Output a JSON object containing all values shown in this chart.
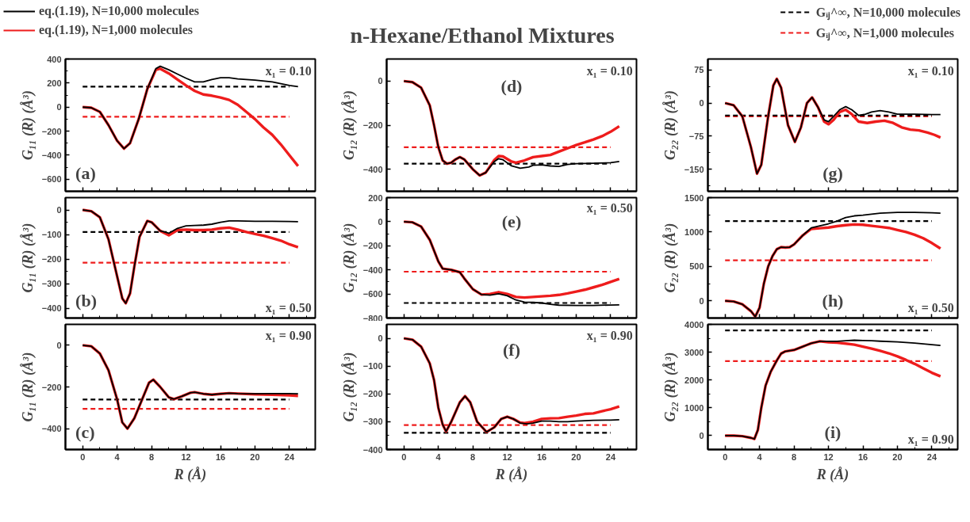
{
  "chart_data": [
    {
      "type": "line",
      "xlim": [
        -2,
        27
      ],
      "xticks": [
        0,
        4,
        8,
        12,
        16,
        20,
        24
      ],
      "ylim": [
        -700,
        400
      ],
      "yticks": [
        -600,
        -400,
        -200,
        0,
        200,
        400
      ],
      "ylabel": "G₁₁ (R) (Å³)",
      "tick_labels": "y",
      "legend": "top left",
      "annotations": [
        "(a)",
        "x₁ = 0.10"
      ],
      "series": [
        {
          "name": "eq.(1.19), N=10,000 molecules",
          "color": "#000000",
          "line_style": "solid",
          "x": [
            0,
            1,
            2,
            3,
            4,
            4.8,
            5.5,
            6.5,
            7.5,
            8.5,
            9,
            10,
            11,
            12,
            13,
            14,
            15,
            16,
            17,
            18,
            20,
            22,
            24,
            25
          ],
          "values": [
            0,
            -5,
            -40,
            -150,
            -280,
            -345,
            -300,
            -100,
            150,
            320,
            340,
            310,
            275,
            240,
            210,
            210,
            230,
            245,
            245,
            235,
            225,
            210,
            180,
            170
          ]
        },
        {
          "name": "eq.(1.19), N=1,000 molecules",
          "color": "#ee1c1c",
          "line_style": "solid",
          "x": [
            0,
            1,
            2,
            3,
            4,
            4.8,
            5.5,
            6.5,
            7.5,
            8.5,
            9,
            10,
            11,
            12,
            13,
            14,
            15,
            16,
            17,
            18,
            19,
            20,
            21,
            22,
            23,
            24,
            25
          ],
          "values": [
            0,
            -5,
            -40,
            -150,
            -280,
            -345,
            -300,
            -100,
            150,
            310,
            320,
            280,
            230,
            180,
            135,
            105,
            95,
            80,
            60,
            20,
            -40,
            -100,
            -170,
            -230,
            -310,
            -400,
            -490
          ]
        },
        {
          "color": "#000000",
          "line_style": "dashed",
          "x": [
            0,
            24
          ],
          "values": [
            170,
            170
          ]
        },
        {
          "color": "#ee1c1c",
          "line_style": "dashed",
          "x": [
            0,
            24
          ],
          "values": [
            -80,
            -80
          ]
        }
      ]
    },
    {
      "type": "line",
      "xlim": [
        -2,
        27
      ],
      "xticks": [
        0,
        4,
        8,
        12,
        16,
        20,
        24
      ],
      "ylim": [
        -440,
        50
      ],
      "yticks": [
        -400,
        -300,
        -200,
        -100,
        0
      ],
      "ylabel": "G₁₁ (R) (Å³)",
      "tick_labels": "y",
      "annotations": [
        "(b)",
        "x₁ = 0.50"
      ],
      "series": [
        {
          "color": "#000000",
          "line_style": "solid",
          "x": [
            0,
            1,
            2,
            3,
            4,
            4.6,
            5,
            5.5,
            6,
            6.6,
            7.5,
            8,
            9,
            10,
            11,
            12,
            13,
            14,
            15,
            16,
            17,
            18,
            20,
            22,
            24,
            25
          ],
          "values": [
            0,
            -5,
            -30,
            -120,
            -270,
            -360,
            -380,
            -340,
            -230,
            -110,
            -45,
            -50,
            -85,
            -95,
            -75,
            -65,
            -63,
            -62,
            -58,
            -50,
            -45,
            -45,
            -46,
            -46,
            -47,
            -48
          ]
        },
        {
          "color": "#ee1c1c",
          "line_style": "solid",
          "x": [
            0,
            1,
            2,
            3,
            4,
            4.6,
            5,
            5.5,
            6,
            6.6,
            7.5,
            8,
            9,
            10,
            11,
            12,
            13,
            14,
            15,
            16,
            17,
            18,
            19,
            20,
            21,
            22,
            23,
            24,
            25
          ],
          "values": [
            0,
            -5,
            -30,
            -120,
            -270,
            -360,
            -380,
            -340,
            -230,
            -110,
            -45,
            -50,
            -85,
            -103,
            -82,
            -80,
            -82,
            -82,
            -80,
            -75,
            -72,
            -80,
            -90,
            -98,
            -105,
            -115,
            -125,
            -140,
            -152
          ]
        },
        {
          "color": "#000000",
          "line_style": "dashed",
          "x": [
            0,
            24
          ],
          "values": [
            -90,
            -90
          ]
        },
        {
          "color": "#ee1c1c",
          "line_style": "dashed",
          "x": [
            0,
            24
          ],
          "values": [
            -215,
            -215
          ]
        }
      ]
    },
    {
      "type": "line",
      "xlim": [
        -2,
        27
      ],
      "xticks": [
        0,
        4,
        8,
        12,
        16,
        20,
        24
      ],
      "ylim": [
        -500,
        100
      ],
      "yticks": [
        -400,
        -200,
        0
      ],
      "ylabel": "G₁₁ (R) (Å³)",
      "xlabel": "R (Å)",
      "annotations": [
        "(c)",
        "x₁ = 0.90"
      ],
      "series": [
        {
          "color": "#000000",
          "line_style": "solid",
          "x": [
            0,
            1,
            2,
            3,
            4,
            4.6,
            5.2,
            6,
            7,
            7.7,
            8.2,
            9,
            10,
            10.6,
            11.5,
            12.5,
            13,
            14,
            15,
            16,
            17,
            18,
            20,
            22,
            24,
            25
          ],
          "values": [
            0,
            -5,
            -40,
            -120,
            -260,
            -370,
            -400,
            -350,
            -250,
            -180,
            -165,
            -200,
            -250,
            -258,
            -245,
            -228,
            -225,
            -233,
            -237,
            -233,
            -230,
            -232,
            -233,
            -232,
            -232,
            -233
          ]
        },
        {
          "color": "#ee1c1c",
          "line_style": "solid",
          "x": [
            0,
            1,
            2,
            3,
            4,
            4.6,
            5.2,
            6,
            7,
            7.7,
            8.2,
            9,
            10,
            10.6,
            11.5,
            12.5,
            13,
            14,
            15,
            16,
            17,
            18,
            20,
            22,
            24,
            25
          ],
          "values": [
            0,
            -5,
            -40,
            -120,
            -260,
            -370,
            -400,
            -350,
            -250,
            -180,
            -165,
            -200,
            -250,
            -258,
            -245,
            -228,
            -225,
            -233,
            -237,
            -233,
            -230,
            -232,
            -235,
            -237,
            -240,
            -243
          ]
        },
        {
          "color": "#000000",
          "line_style": "dashed",
          "x": [
            0,
            24
          ],
          "values": [
            -260,
            -260
          ]
        },
        {
          "color": "#ee1c1c",
          "line_style": "dashed",
          "x": [
            0,
            24
          ],
          "values": [
            -305,
            -305
          ]
        }
      ]
    },
    {
      "type": "line",
      "title": "n-Hexane/Ethanol Mixtures",
      "xlim": [
        -2,
        27
      ],
      "xticks": [
        0,
        4,
        8,
        12,
        16,
        20,
        24
      ],
      "ylim": [
        -500,
        100
      ],
      "yticks": [
        -400,
        -200,
        0
      ],
      "ylabel": "G₁₂ (R) (Å³)",
      "tick_labels": "y",
      "annotations": [
        "(d)",
        "x₁ = 0.10"
      ],
      "series": [
        {
          "color": "#000000",
          "line_style": "solid",
          "x": [
            0,
            1,
            2,
            3,
            3.5,
            4,
            4.5,
            5,
            5.5,
            6,
            6.5,
            7,
            8,
            8.8,
            9.5,
            10.5,
            11,
            11.5,
            12.5,
            13.5,
            14.5,
            15,
            16,
            17,
            18,
            19,
            20,
            22,
            24,
            25
          ],
          "values": [
            0,
            -5,
            -30,
            -110,
            -200,
            -300,
            -360,
            -375,
            -370,
            -355,
            -345,
            -355,
            -400,
            -428,
            -415,
            -365,
            -352,
            -357,
            -385,
            -395,
            -390,
            -382,
            -380,
            -385,
            -387,
            -378,
            -375,
            -373,
            -370,
            -365
          ]
        },
        {
          "color": "#ee1c1c",
          "line_style": "solid",
          "x": [
            0,
            1,
            2,
            3,
            3.5,
            4,
            4.5,
            5,
            5.5,
            6,
            6.5,
            7,
            8,
            8.8,
            9.5,
            10.5,
            11,
            11.5,
            12.5,
            13,
            14,
            15,
            16,
            17,
            18,
            19,
            20,
            21,
            22,
            23,
            24,
            25
          ],
          "values": [
            0,
            -5,
            -30,
            -110,
            -200,
            -300,
            -360,
            -375,
            -370,
            -355,
            -345,
            -355,
            -400,
            -428,
            -415,
            -358,
            -340,
            -342,
            -365,
            -370,
            -360,
            -345,
            -340,
            -335,
            -320,
            -305,
            -290,
            -278,
            -265,
            -250,
            -230,
            -205
          ]
        },
        {
          "color": "#000000",
          "line_style": "dashed",
          "x": [
            0,
            24
          ],
          "values": [
            -375,
            -375
          ]
        },
        {
          "color": "#ee1c1c",
          "line_style": "dashed",
          "x": [
            0,
            24
          ],
          "values": [
            -300,
            -300
          ]
        }
      ]
    },
    {
      "type": "line",
      "xlim": [
        -2,
        27
      ],
      "xticks": [
        0,
        4,
        8,
        12,
        16,
        20,
        24
      ],
      "ylim": [
        -800,
        200
      ],
      "yticks": [
        -800,
        -600,
        -400,
        -200,
        0,
        200
      ],
      "ylabel": "G₁₂ (R) (Å³)",
      "tick_labels": "y",
      "annotations": [
        "(e)",
        "x₁ = 0.50"
      ],
      "series": [
        {
          "color": "#000000",
          "line_style": "solid",
          "x": [
            0,
            1,
            2,
            3,
            4,
            4.5,
            5.5,
            6.5,
            7,
            8,
            9,
            10,
            11,
            12,
            13,
            14,
            15,
            16,
            17,
            18,
            20,
            22,
            24,
            25
          ],
          "values": [
            0,
            -5,
            -40,
            -150,
            -330,
            -390,
            -400,
            -420,
            -470,
            -560,
            -605,
            -610,
            -598,
            -615,
            -650,
            -668,
            -670,
            -675,
            -685,
            -693,
            -695,
            -695,
            -692,
            -690
          ]
        },
        {
          "color": "#ee1c1c",
          "line_style": "solid",
          "x": [
            0,
            1,
            2,
            3,
            4,
            4.5,
            5.5,
            6.5,
            7,
            8,
            9,
            10,
            11,
            12,
            13,
            14,
            15,
            16,
            17,
            18,
            19,
            20,
            21,
            22,
            23,
            24,
            25
          ],
          "values": [
            0,
            -5,
            -40,
            -150,
            -330,
            -390,
            -400,
            -420,
            -470,
            -560,
            -605,
            -600,
            -585,
            -600,
            -625,
            -630,
            -625,
            -620,
            -615,
            -608,
            -595,
            -580,
            -565,
            -545,
            -525,
            -500,
            -475
          ]
        },
        {
          "color": "#000000",
          "line_style": "dashed",
          "x": [
            0,
            24
          ],
          "values": [
            -675,
            -675
          ]
        },
        {
          "color": "#ee1c1c",
          "line_style": "dashed",
          "x": [
            0,
            24
          ],
          "values": [
            -415,
            -415
          ]
        }
      ]
    },
    {
      "type": "line",
      "xlim": [
        -2,
        27
      ],
      "xticks": [
        0,
        4,
        8,
        12,
        16,
        20,
        24
      ],
      "ylim": [
        -400,
        50
      ],
      "yticks": [
        -400,
        -300,
        -200,
        -100,
        0
      ],
      "ylabel": "G₁₂ (R) (Å³)",
      "xlabel": "R (Å)",
      "annotations": [
        "(f)",
        "x₁ = 0.90"
      ],
      "series": [
        {
          "color": "#000000",
          "line_style": "solid",
          "x": [
            0,
            1,
            2,
            3,
            3.5,
            4,
            4.5,
            4.9,
            5.5,
            6.5,
            7.1,
            7.7,
            8.5,
            9.6,
            10.5,
            11.3,
            12,
            12.7,
            13.5,
            14.3,
            15,
            16,
            17,
            18,
            19,
            20,
            22,
            24,
            25
          ],
          "values": [
            0,
            -5,
            -30,
            -90,
            -150,
            -250,
            -310,
            -335,
            -300,
            -230,
            -208,
            -230,
            -300,
            -337,
            -320,
            -290,
            -282,
            -290,
            -305,
            -308,
            -305,
            -298,
            -298,
            -300,
            -300,
            -298,
            -295,
            -294,
            -293
          ]
        },
        {
          "color": "#ee1c1c",
          "line_style": "solid",
          "x": [
            0,
            1,
            2,
            3,
            3.5,
            4,
            4.5,
            4.9,
            5.5,
            6.5,
            7.1,
            7.7,
            8.5,
            9.6,
            10.5,
            11.3,
            12,
            12.7,
            13.5,
            14,
            15,
            16,
            17,
            18,
            19,
            20,
            21,
            22,
            23,
            24,
            25
          ],
          "values": [
            0,
            -5,
            -30,
            -90,
            -150,
            -250,
            -310,
            -335,
            -300,
            -230,
            -208,
            -230,
            -300,
            -337,
            -320,
            -290,
            -282,
            -290,
            -303,
            -305,
            -300,
            -290,
            -288,
            -287,
            -282,
            -278,
            -272,
            -270,
            -262,
            -255,
            -245
          ]
        },
        {
          "color": "#000000",
          "line_style": "dashed",
          "x": [
            0,
            24
          ],
          "values": [
            -340,
            -340
          ]
        },
        {
          "color": "#ee1c1c",
          "line_style": "dashed",
          "x": [
            0,
            24
          ],
          "values": [
            -312,
            -312
          ]
        }
      ]
    },
    {
      "type": "line",
      "xlim": [
        -2,
        27
      ],
      "xticks": [
        0,
        4,
        8,
        12,
        16,
        20,
        24
      ],
      "ylim": [
        -200,
        100
      ],
      "yticks": [
        -150,
        -75,
        0,
        75
      ],
      "ylabel": "G₂₂ (R) (Å³)",
      "tick_labels": "y",
      "legend": "top right",
      "annotations": [
        "(g)",
        "x₁ = 0.10"
      ],
      "series": [
        {
          "color": "#000000",
          "line_style": "solid",
          "x": [
            0,
            1,
            2,
            3,
            3.7,
            4.2,
            5,
            5.6,
            6,
            6.5,
            7.3,
            8.1,
            8.8,
            9.5,
            10.1,
            10.8,
            11.5,
            12,
            12.6,
            13.3,
            14,
            14.7,
            15.5,
            16.3,
            17,
            18,
            19,
            20,
            22,
            24,
            25
          ],
          "values": [
            0,
            -5,
            -30,
            -100,
            -160,
            -140,
            -30,
            40,
            55,
            35,
            -50,
            -88,
            -55,
            0,
            13,
            -10,
            -38,
            -42,
            -30,
            -15,
            -8,
            -15,
            -28,
            -25,
            -20,
            -17,
            -20,
            -25,
            -25,
            -26,
            -26
          ]
        },
        {
          "color": "#ee1c1c",
          "line_style": "solid",
          "x": [
            0,
            1,
            2,
            3,
            3.7,
            4.2,
            5,
            5.6,
            6,
            6.5,
            7.3,
            8.1,
            8.8,
            9.5,
            10.1,
            10.8,
            11.5,
            12,
            12.6,
            13.3,
            14,
            14.7,
            15.5,
            16.5,
            17.5,
            18.5,
            19.5,
            20.5,
            21.5,
            22.5,
            23.5,
            24.3,
            25
          ],
          "values": [
            0,
            -5,
            -30,
            -100,
            -160,
            -140,
            -30,
            40,
            55,
            35,
            -50,
            -88,
            -55,
            0,
            13,
            -10,
            -42,
            -48,
            -38,
            -20,
            -15,
            -25,
            -42,
            -45,
            -42,
            -40,
            -45,
            -55,
            -60,
            -62,
            -67,
            -72,
            -78
          ]
        },
        {
          "name": "Gᵢⱼ^∞, N=10,000 molecules",
          "color": "#000000",
          "line_style": "dashed",
          "x": [
            0,
            24
          ],
          "values": [
            -28,
            -28
          ]
        },
        {
          "name": "Gᵢⱼ^∞, N=1,000 molecules",
          "color": "#ee1c1c",
          "line_style": "dashed",
          "x": [
            0,
            24
          ],
          "values": [
            -30,
            -30
          ]
        }
      ]
    },
    {
      "type": "line",
      "xlim": [
        -2,
        27
      ],
      "xticks": [
        0,
        4,
        8,
        12,
        16,
        20,
        24
      ],
      "ylim": [
        -250,
        1500
      ],
      "yticks": [
        0,
        500,
        1000,
        1500
      ],
      "ylabel": "G₂₂ (R) (Å³)",
      "tick_labels": "y",
      "annotations": [
        "(h)",
        "x₁ = 0.50"
      ],
      "series": [
        {
          "color": "#000000",
          "line_style": "solid",
          "x": [
            0,
            1,
            2,
            3,
            3.5,
            4,
            4.5,
            5,
            5.5,
            6,
            6.5,
            7,
            7.5,
            8,
            9,
            10,
            11,
            12,
            13,
            14,
            15,
            16,
            17,
            18,
            20,
            22,
            24,
            25
          ],
          "values": [
            0,
            -10,
            -50,
            -150,
            -230,
            -100,
            250,
            500,
            650,
            750,
            780,
            775,
            780,
            820,
            950,
            1060,
            1090,
            1120,
            1160,
            1210,
            1235,
            1245,
            1260,
            1275,
            1285,
            1285,
            1280,
            1275
          ]
        },
        {
          "color": "#ee1c1c",
          "line_style": "solid",
          "x": [
            0,
            1,
            2,
            3,
            3.5,
            4,
            4.5,
            5,
            5.5,
            6,
            6.5,
            7,
            7.5,
            8,
            9,
            10,
            11,
            12,
            13,
            14,
            15,
            16,
            17,
            18,
            19,
            20,
            21,
            22,
            23,
            24,
            25
          ],
          "values": [
            0,
            -10,
            -50,
            -150,
            -230,
            -100,
            250,
            500,
            650,
            750,
            780,
            775,
            780,
            820,
            950,
            1045,
            1055,
            1065,
            1085,
            1100,
            1110,
            1105,
            1090,
            1075,
            1060,
            1030,
            1000,
            960,
            910,
            840,
            760
          ]
        },
        {
          "color": "#000000",
          "line_style": "dashed",
          "x": [
            0,
            24
          ],
          "values": [
            1160,
            1160
          ]
        },
        {
          "color": "#ee1c1c",
          "line_style": "dashed",
          "x": [
            0,
            24
          ],
          "values": [
            590,
            590
          ]
        }
      ]
    },
    {
      "type": "line",
      "xlim": [
        -2,
        27
      ],
      "xticks": [
        0,
        4,
        8,
        12,
        16,
        20,
        24
      ],
      "ylim": [
        -500,
        4000
      ],
      "yticks": [
        0,
        1000,
        2000,
        3000,
        4000
      ],
      "ylabel": "G₂₂ (R) (Å³)",
      "xlabel": "R (Å)",
      "annotations": [
        "(i)",
        "x₁ = 0.90"
      ],
      "series": [
        {
          "color": "#000000",
          "line_style": "solid",
          "x": [
            0,
            1,
            2,
            3,
            3.4,
            3.8,
            4.2,
            4.7,
            5.3,
            6,
            6.5,
            7,
            8,
            9,
            10,
            11,
            12,
            13,
            14,
            15,
            16,
            17,
            18,
            20,
            22,
            24,
            25
          ],
          "values": [
            0,
            0,
            -20,
            -80,
            -120,
            200,
            1000,
            1800,
            2300,
            2700,
            2950,
            3030,
            3080,
            3200,
            3320,
            3390,
            3390,
            3390,
            3410,
            3430,
            3420,
            3410,
            3395,
            3370,
            3330,
            3270,
            3240
          ]
        },
        {
          "color": "#ee1c1c",
          "line_style": "solid",
          "x": [
            0,
            1,
            2,
            3,
            3.4,
            3.8,
            4.2,
            4.7,
            5.3,
            6,
            6.5,
            7,
            8,
            9,
            10,
            11,
            12,
            13,
            14,
            15,
            16,
            17,
            18,
            19,
            20,
            21,
            22,
            23,
            24,
            25
          ],
          "values": [
            0,
            0,
            -20,
            -80,
            -120,
            200,
            1000,
            1800,
            2300,
            2700,
            2950,
            3030,
            3080,
            3200,
            3320,
            3390,
            3360,
            3340,
            3310,
            3270,
            3200,
            3130,
            3050,
            2960,
            2850,
            2720,
            2580,
            2420,
            2260,
            2130
          ]
        },
        {
          "color": "#000000",
          "line_style": "dashed",
          "x": [
            0,
            24
          ],
          "values": [
            3780,
            3780
          ]
        },
        {
          "color": "#ee1c1c",
          "line_style": "dashed",
          "x": [
            0,
            24
          ],
          "values": [
            2680,
            2680
          ]
        }
      ]
    }
  ]
}
